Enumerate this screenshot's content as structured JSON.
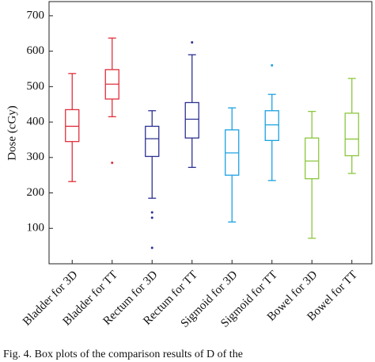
{
  "chart_data": {
    "type": "box",
    "y_label": "Dose (cGy)",
    "categories": [
      "Bladder for 3D",
      "Bladder for TT",
      "Rectum for 3D",
      "Rectum for TT",
      "Sigmoid for 3D",
      "Sigmoid for TT",
      "Bowel for 3D",
      "Bowel for TT"
    ],
    "colors": [
      "#e0303c",
      "#e0303c",
      "#2e3192",
      "#2e3192",
      "#1ba1e2",
      "#1ba1e2",
      "#8cc63f",
      "#8cc63f"
    ],
    "boxes": [
      {
        "whislo": 232,
        "q1": 345,
        "med": 388,
        "q3": 435,
        "whishi": 537,
        "outliers": []
      },
      {
        "whislo": 415,
        "q1": 465,
        "med": 507,
        "q3": 548,
        "whishi": 637,
        "outliers": [
          285
        ]
      },
      {
        "whislo": 185,
        "q1": 303,
        "med": 353,
        "q3": 388,
        "whishi": 432,
        "outliers": [
          45,
          130,
          145
        ]
      },
      {
        "whislo": 272,
        "q1": 355,
        "med": 408,
        "q3": 455,
        "whishi": 590,
        "outliers": [
          625
        ]
      },
      {
        "whislo": 118,
        "q1": 250,
        "med": 313,
        "q3": 378,
        "whishi": 440,
        "outliers": []
      },
      {
        "whislo": 235,
        "q1": 348,
        "med": 392,
        "q3": 432,
        "whishi": 478,
        "outliers": [
          560
        ]
      },
      {
        "whislo": 72,
        "q1": 240,
        "med": 290,
        "q3": 355,
        "whishi": 430,
        "outliers": []
      },
      {
        "whislo": 255,
        "q1": 305,
        "med": 352,
        "q3": 425,
        "whishi": 523,
        "outliers": []
      }
    ],
    "ylim": [
      0,
      740
    ],
    "yticks": [
      100,
      200,
      300,
      400,
      500,
      600,
      700
    ]
  },
  "caption": "Fig. 4. Box plots of the comparison results of D of the"
}
